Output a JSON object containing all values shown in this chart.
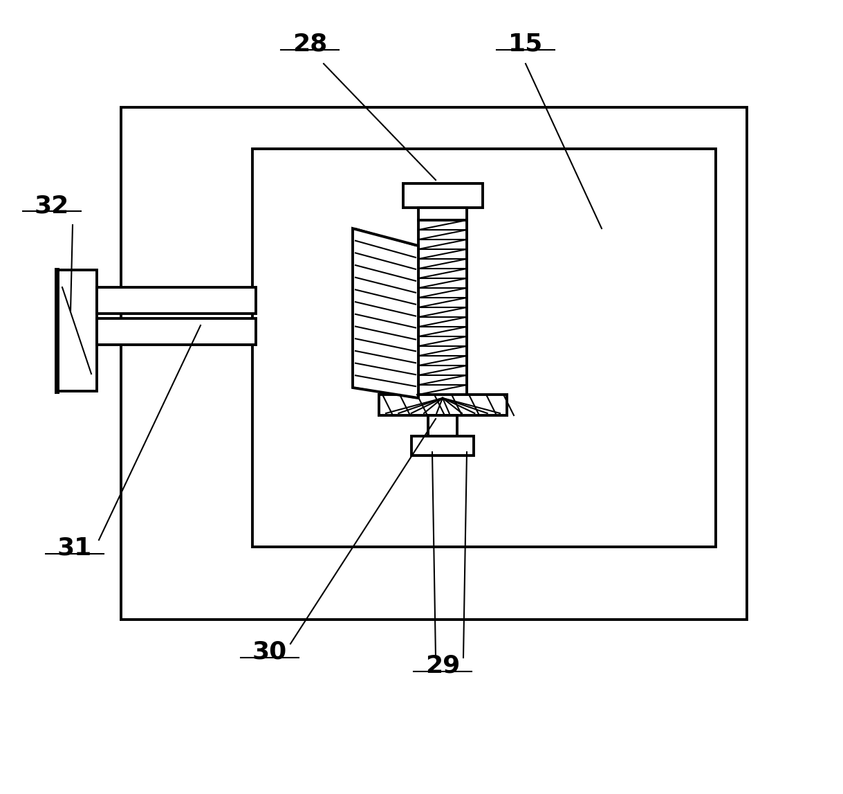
{
  "bg_color": "#ffffff",
  "lw": 2.8,
  "lw_thin": 1.5,
  "lw_thick": 5.0,
  "fig_width": 12.19,
  "fig_height": 11.47
}
